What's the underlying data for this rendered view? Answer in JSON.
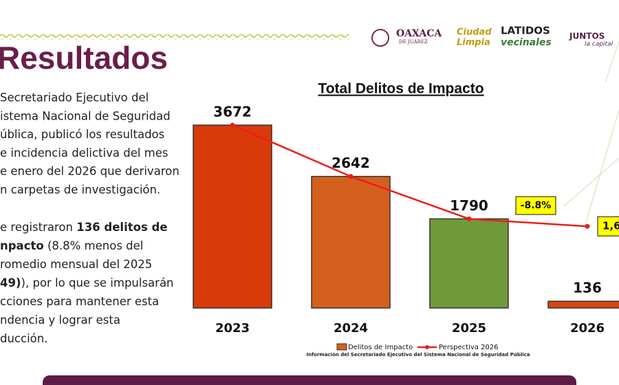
{
  "slide": {
    "title": "Resultados",
    "logos": {
      "oaxaca": "OAXACA",
      "oaxaca_sub": "DE JUÁREZ",
      "ciudad": "Ciudad",
      "limpia": "Limpia",
      "latidos": "LATIDOS",
      "vecinales": "vecinales",
      "juntos": "JUNTOS",
      "capital": "la capital"
    },
    "paragraph1": [
      "Secretariado Ejecutivo del",
      "istema Nacional de Seguridad",
      "ública, publicó los resultados",
      "e incidencia delictiva del mes",
      "e enero del 2026 que derivaron",
      "n carpetas de investigación."
    ],
    "paragraph2": [
      [
        {
          "text": "e registraron "
        },
        {
          "text": "136 delitos de",
          "bold": true
        }
      ],
      [
        {
          "text": "npacto",
          "bold": true
        },
        {
          "text": " (8.8% menos del"
        }
      ],
      [
        {
          "text": "romedio mensual del 2025"
        }
      ],
      [
        {
          "text": "49)",
          "bold": true
        },
        {
          "text": "), por lo que se impulsarán"
        }
      ],
      [
        {
          "text": "cciones para mantener esta"
        }
      ],
      [
        {
          "text": "ndencia y lograr esta"
        }
      ],
      [
        {
          "text": "ducción."
        }
      ]
    ]
  },
  "chart_data": {
    "type": "bar",
    "title": "Total Delitos de Impacto",
    "categories": [
      "2023",
      "2024",
      "2025",
      "2026"
    ],
    "series": [
      {
        "name": "Delitos de Impacto",
        "color": "#d4601e",
        "colors": [
          "#d93a0a",
          "#d4601e",
          "#6e9a3a",
          "#d9460f"
        ],
        "values": [
          3672,
          2642,
          1790,
          136
        ]
      },
      {
        "name": "Perspectiva 2026",
        "type": "line",
        "color": "#ee1c1c",
        "values": [
          3672,
          2642,
          1790,
          1640
        ],
        "value_labels": [
          null,
          null,
          null,
          "1,6"
        ]
      }
    ],
    "annotation": "-8.8%",
    "source": "Información del Secretariado Ejecutivo del Sistema Nacional de Seguridad Pública"
  }
}
